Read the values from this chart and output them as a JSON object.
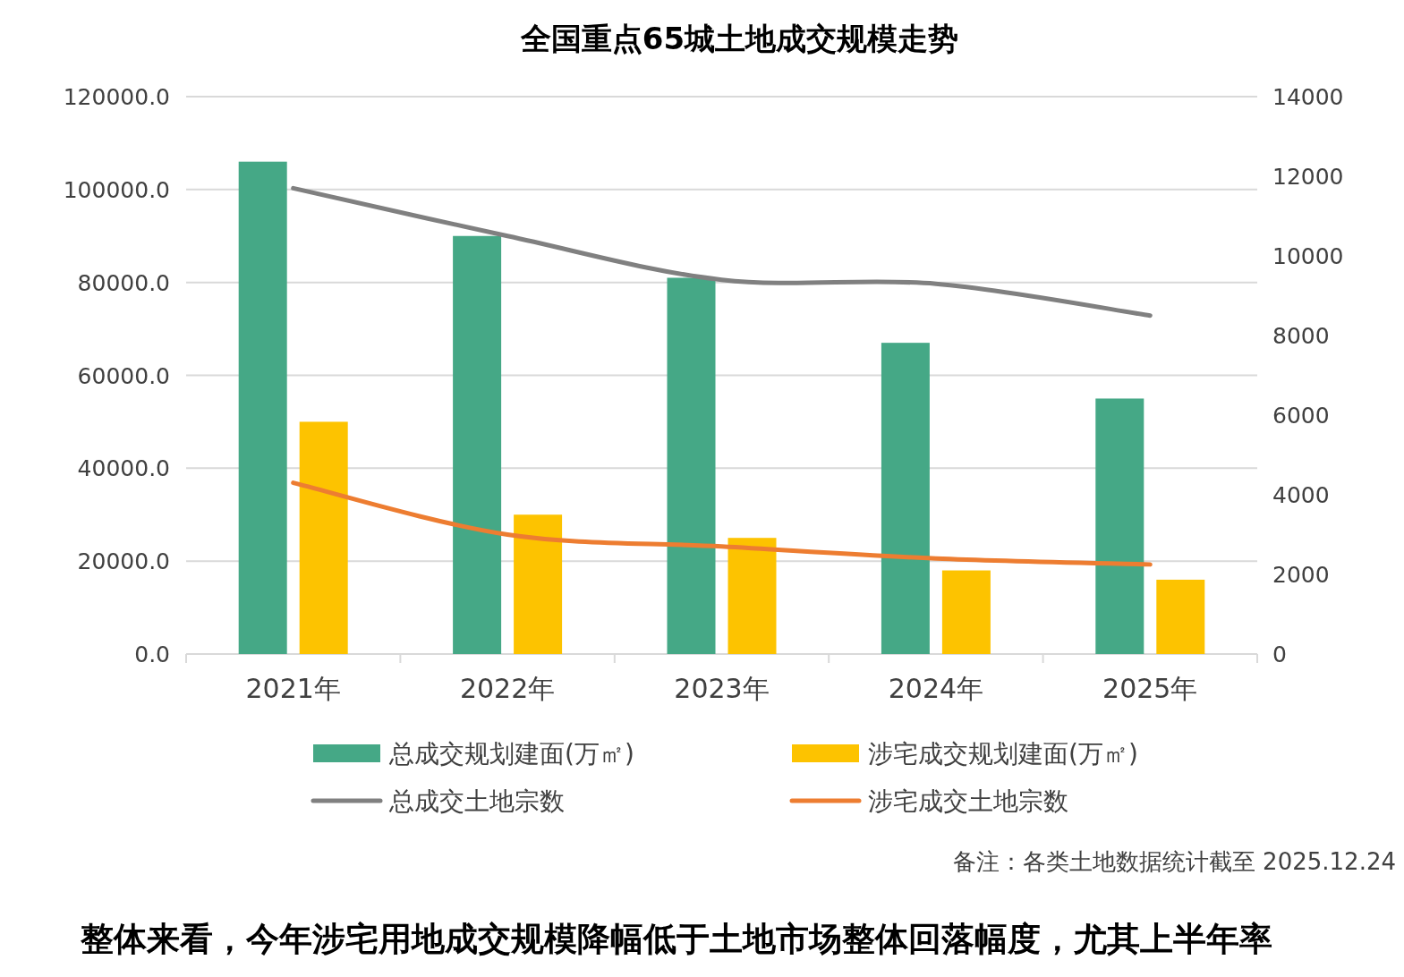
{
  "chart_data": {
    "type": "bar",
    "title": "全国重点65城土地成交规模走势",
    "categories": [
      "2021年",
      "2022年",
      "2023年",
      "2024年",
      "2025年"
    ],
    "series": [
      {
        "name": "总成交规划建面(万㎡)",
        "color": "#45a886",
        "values": [
          106000,
          90000,
          81000,
          67000,
          55000
        ]
      },
      {
        "name": "涉宅成交规划建面(万㎡)",
        "color": "#fdc300",
        "values": [
          50000,
          30000,
          25000,
          18000,
          16000
        ]
      },
      {
        "name": "总成交土地宗数",
        "type": "line",
        "axis": "y2",
        "color": "#808080",
        "values": [
          11700,
          10500,
          9400,
          9300,
          8500
        ]
      },
      {
        "name": "涉宅成交土地宗数",
        "type": "line",
        "axis": "y2",
        "color": "#ed7d31",
        "values": [
          4300,
          3000,
          2700,
          2400,
          2250
        ]
      }
    ],
    "ylim": [
      0,
      120000
    ],
    "yticks": [
      {
        "value": 0,
        "label": "0.0"
      },
      {
        "value": 20000,
        "label": "20000.0"
      },
      {
        "value": 40000,
        "label": "40000.0"
      },
      {
        "value": 60000,
        "label": "60000.0"
      },
      {
        "value": 80000,
        "label": "80000.0"
      },
      {
        "value": 100000,
        "label": "100000.0"
      },
      {
        "value": 120000,
        "label": "120000.0"
      }
    ],
    "y2lim": [
      0,
      14000
    ],
    "y2ticks": [
      0,
      2000,
      4000,
      6000,
      8000,
      10000,
      12000,
      14000
    ],
    "grid": "y",
    "legend": "bottom",
    "annotations": [
      "备注：各类土地数据统计截至 2025.12.24",
      "整体来看，今年涉宅用地成交规模降幅低于土地市场整体回落幅度，尤其上半年率"
    ]
  }
}
